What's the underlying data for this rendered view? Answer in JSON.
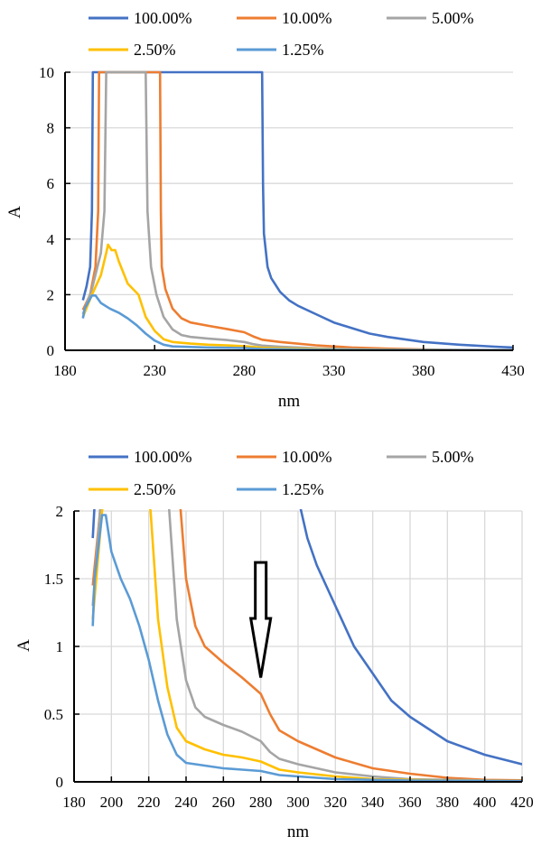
{
  "chart_data": [
    {
      "type": "line",
      "xlabel": "nm",
      "ylabel": "A",
      "xlim": [
        180,
        430
      ],
      "ylim": [
        0,
        10
      ],
      "xticks": [
        180,
        230,
        280,
        330,
        380,
        430
      ],
      "yticks": [
        0,
        2,
        4,
        6,
        8,
        10
      ],
      "grid": "horizontal",
      "legend": "top",
      "series": [
        {
          "name": "100.00%",
          "color": "#4472C4",
          "points": [
            [
              190,
              1.8
            ],
            [
              192,
              2.3
            ],
            [
              194,
              3
            ],
            [
              195,
              5
            ],
            [
              195.5,
              10
            ],
            [
              290,
              10
            ],
            [
              290.5,
              6
            ],
            [
              291,
              4.2
            ],
            [
              293,
              3
            ],
            [
              295,
              2.6
            ],
            [
              300,
              2.1
            ],
            [
              305,
              1.8
            ],
            [
              310,
              1.6
            ],
            [
              320,
              1.3
            ],
            [
              330,
              1.0
            ],
            [
              340,
              0.8
            ],
            [
              350,
              0.6
            ],
            [
              360,
              0.48
            ],
            [
              380,
              0.3
            ],
            [
              400,
              0.2
            ],
            [
              420,
              0.13
            ],
            [
              430,
              0.1
            ]
          ]
        },
        {
          "name": "10.00%",
          "color": "#ED7D31",
          "points": [
            [
              190,
              1.45
            ],
            [
              194,
              2
            ],
            [
              197,
              3
            ],
            [
              198.5,
              5
            ],
            [
              199,
              10
            ],
            [
              233,
              10
            ],
            [
              233.5,
              5
            ],
            [
              234,
              3
            ],
            [
              236,
              2.2
            ],
            [
              240,
              1.5
            ],
            [
              245,
              1.15
            ],
            [
              250,
              1.0
            ],
            [
              260,
              0.88
            ],
            [
              270,
              0.77
            ],
            [
              280,
              0.65
            ],
            [
              285,
              0.5
            ],
            [
              290,
              0.38
            ],
            [
              300,
              0.3
            ],
            [
              320,
              0.18
            ],
            [
              340,
              0.1
            ],
            [
              360,
              0.06
            ],
            [
              380,
              0.03
            ],
            [
              400,
              0.015
            ],
            [
              430,
              0.01
            ]
          ]
        },
        {
          "name": "5.00%",
          "color": "#A5A5A5",
          "points": [
            [
              190,
              1.3
            ],
            [
              195,
              2.2
            ],
            [
              200,
              3.5
            ],
            [
              202,
              5
            ],
            [
              203,
              10
            ],
            [
              225,
              10
            ],
            [
              226,
              5
            ],
            [
              228,
              3
            ],
            [
              231,
              2
            ],
            [
              235,
              1.2
            ],
            [
              240,
              0.75
            ],
            [
              245,
              0.55
            ],
            [
              250,
              0.48
            ],
            [
              260,
              0.42
            ],
            [
              270,
              0.37
            ],
            [
              280,
              0.3
            ],
            [
              285,
              0.22
            ],
            [
              290,
              0.17
            ],
            [
              300,
              0.13
            ],
            [
              320,
              0.07
            ],
            [
              340,
              0.04
            ],
            [
              360,
              0.02
            ],
            [
              400,
              0.01
            ],
            [
              430,
              0.005
            ]
          ]
        },
        {
          "name": "2.50%",
          "color": "#FFC000",
          "points": [
            [
              190,
              1.2
            ],
            [
              195,
              2
            ],
            [
              200,
              2.7
            ],
            [
              203,
              3.5
            ],
            [
              204,
              3.8
            ],
            [
              206,
              3.6
            ],
            [
              208,
              3.6
            ],
            [
              210,
              3.2
            ],
            [
              215,
              2.4
            ],
            [
              221,
              2
            ],
            [
              225,
              1.2
            ],
            [
              230,
              0.7
            ],
            [
              235,
              0.4
            ],
            [
              240,
              0.3
            ],
            [
              250,
              0.24
            ],
            [
              260,
              0.2
            ],
            [
              270,
              0.18
            ],
            [
              280,
              0.15
            ],
            [
              285,
              0.12
            ],
            [
              290,
              0.09
            ],
            [
              300,
              0.07
            ],
            [
              320,
              0.04
            ],
            [
              340,
              0.02
            ],
            [
              380,
              0.01
            ],
            [
              430,
              0.005
            ]
          ]
        },
        {
          "name": "1.25%",
          "color": "#5B9BD5",
          "points": [
            [
              190,
              1.15
            ],
            [
              191,
              1.5
            ],
            [
              195,
              1.97
            ],
            [
              197,
              1.97
            ],
            [
              200,
              1.7
            ],
            [
              205,
              1.5
            ],
            [
              210,
              1.35
            ],
            [
              215,
              1.15
            ],
            [
              220,
              0.9
            ],
            [
              225,
              0.6
            ],
            [
              230,
              0.35
            ],
            [
              235,
              0.2
            ],
            [
              240,
              0.14
            ],
            [
              250,
              0.12
            ],
            [
              260,
              0.1
            ],
            [
              270,
              0.09
            ],
            [
              280,
              0.08
            ],
            [
              290,
              0.05
            ],
            [
              300,
              0.04
            ],
            [
              320,
              0.02
            ],
            [
              360,
              0.01
            ],
            [
              430,
              0.005
            ]
          ]
        }
      ]
    },
    {
      "type": "line",
      "xlabel": "nm",
      "ylabel": "A",
      "xlim": [
        180,
        420
      ],
      "ylim": [
        0,
        2
      ],
      "xticks": [
        180,
        200,
        220,
        240,
        260,
        280,
        300,
        320,
        340,
        360,
        380,
        400,
        420
      ],
      "yticks": [
        0,
        0.5,
        1,
        1.5,
        2
      ],
      "ytick_labels": [
        "0",
        "0.5",
        "1",
        "1.5",
        "2"
      ],
      "grid": "both",
      "legend": "top",
      "annotation": {
        "type": "arrow",
        "x": 280,
        "y_from": 1.62,
        "y_to": 0.77
      },
      "series": "same as chart 1 (zoomed view)"
    }
  ]
}
